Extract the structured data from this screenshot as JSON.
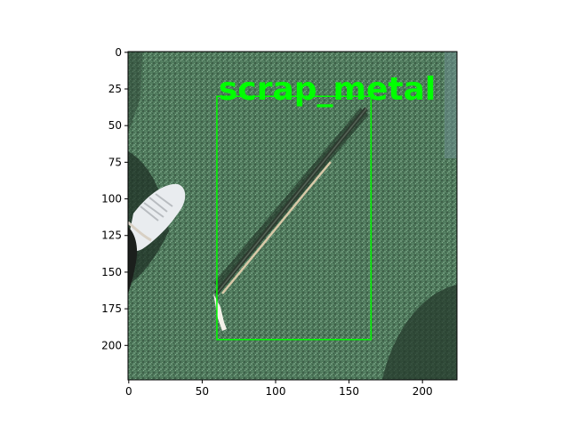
{
  "image": {
    "width_units": 224,
    "height_units": 224,
    "description_colors": {
      "turf": "#4f7a5c",
      "turf_dark": "#2f4a37",
      "shadow": "#2a3d30",
      "shoe": "#e8ecef",
      "rod": "#3a4a3a",
      "string": "#d9c9a8"
    }
  },
  "axes": {
    "xlim": [
      0,
      224
    ],
    "ylim": [
      224,
      0
    ],
    "x_ticks": [
      0,
      50,
      100,
      150,
      200
    ],
    "y_ticks": [
      0,
      25,
      50,
      75,
      100,
      125,
      150,
      175,
      200
    ],
    "x_tick_labels": [
      "0",
      "50",
      "100",
      "150",
      "200"
    ],
    "y_tick_labels": [
      "0",
      "25",
      "50",
      "75",
      "100",
      "125",
      "150",
      "175",
      "200"
    ]
  },
  "detections": [
    {
      "label": "scrap_metal",
      "color": "#00ff00",
      "box": {
        "x1": 60,
        "y1": 30,
        "x2": 165,
        "y2": 196
      }
    }
  ]
}
